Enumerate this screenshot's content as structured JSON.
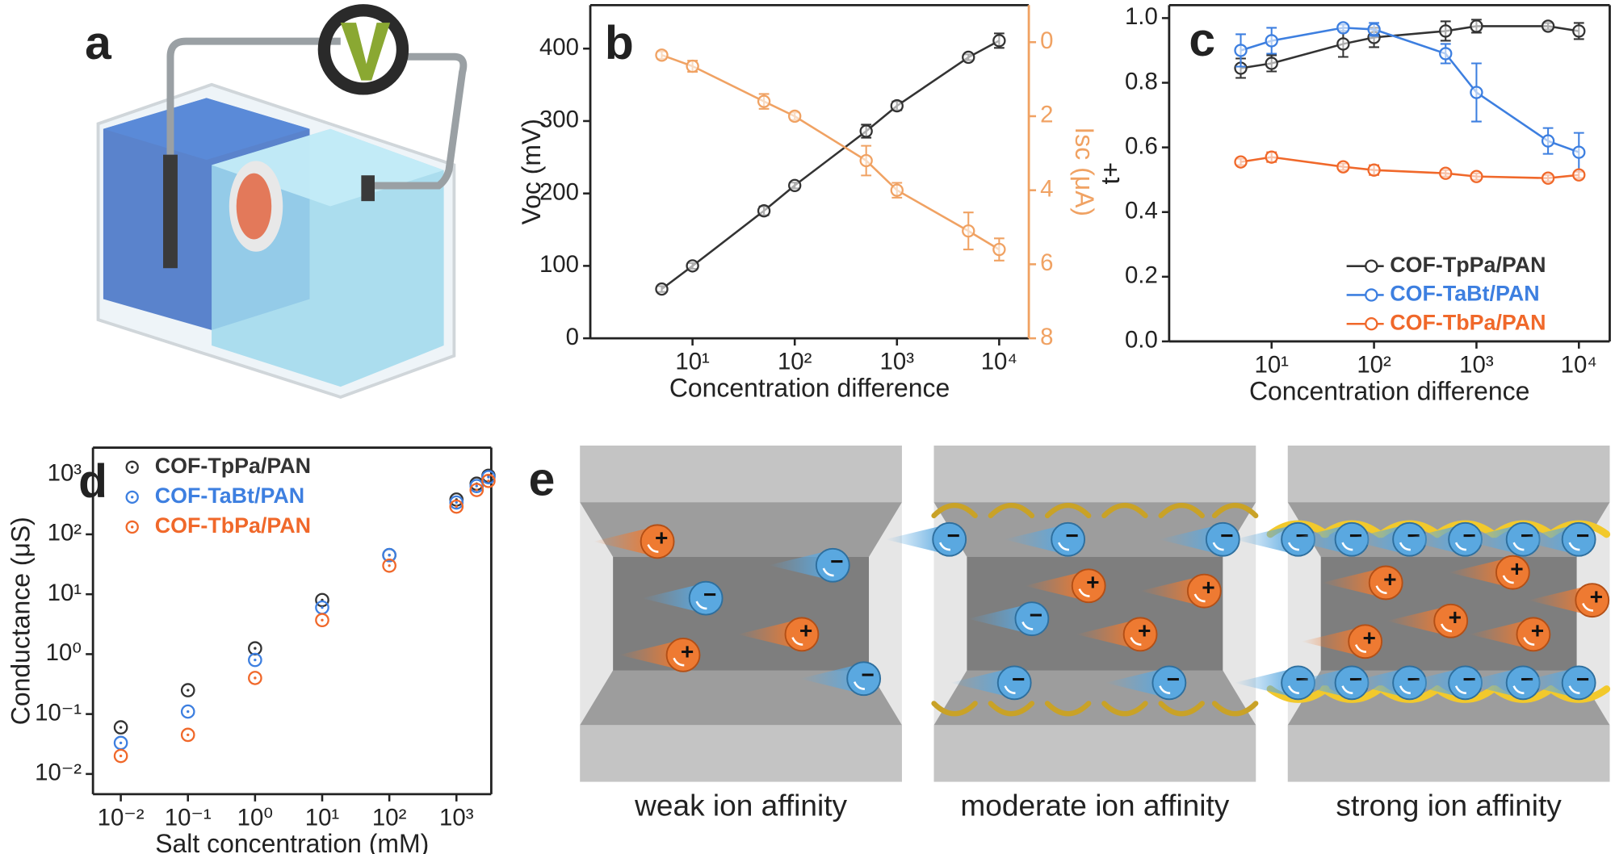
{
  "panel_labels": [
    "a",
    "b",
    "c",
    "d",
    "e"
  ],
  "diagram": {
    "captions": [
      "weak ion affinity",
      "moderate ion affinity",
      "strong ion affinity"
    ],
    "signs": {
      "cation": "+",
      "anion": "−"
    }
  },
  "chart_data": [
    {
      "type": "line",
      "xlabel": "Concentration difference",
      "ylabel": "Voc (mV)",
      "y2label": "Isc (μA)",
      "xscale": "log",
      "xlim": [
        1,
        19500
      ],
      "xticks": [
        {
          "value": 10,
          "label": "10¹"
        },
        {
          "value": 100,
          "label": "10²"
        },
        {
          "value": 1000,
          "label": "10³"
        },
        {
          "value": 10000,
          "label": "10⁴"
        }
      ],
      "ylim": [
        0,
        460
      ],
      "yticks": [
        0,
        100,
        200,
        300,
        400
      ],
      "y2lim": [
        8,
        -1
      ],
      "y2ticks": [
        0,
        2,
        4,
        6,
        8
      ],
      "y2color": "#f0a263",
      "x": [
        5,
        10,
        50,
        100,
        500,
        1000,
        5000,
        10000
      ],
      "series": [
        {
          "name": "Voc",
          "color": "#333333",
          "values": [
            68,
            100,
            176,
            211,
            286,
            321,
            388,
            411
          ],
          "errors": [
            4,
            4,
            6,
            4,
            9,
            6,
            4,
            10
          ]
        },
        {
          "name": "Isc",
          "color": "#f0a263",
          "axis": "y2",
          "values": [
            0.35,
            0.65,
            1.6,
            2.0,
            3.2,
            4.0,
            5.1,
            5.6
          ],
          "errors": [
            0.1,
            0.15,
            0.2,
            0.1,
            0.4,
            0.2,
            0.5,
            0.3
          ]
        }
      ]
    },
    {
      "type": "line",
      "xlabel": "Concentration difference",
      "ylabel": "t+",
      "xscale": "log",
      "xlim": [
        1,
        20000
      ],
      "xticks": [
        {
          "value": 10,
          "label": "10¹"
        },
        {
          "value": 100,
          "label": "10²"
        },
        {
          "value": 1000,
          "label": "10³"
        },
        {
          "value": 10000,
          "label": "10⁴"
        }
      ],
      "ylim": [
        0,
        1.04
      ],
      "yticks": [
        {
          "value": 0,
          "label": "0.0"
        },
        0.2,
        0.4,
        0.6,
        0.8,
        {
          "value": 1,
          "label": "1.0"
        }
      ],
      "legend": "lower right",
      "x": [
        5,
        10,
        50,
        100,
        500,
        1000,
        5000,
        10000
      ],
      "series": [
        {
          "name": "COF-TpPa/PAN",
          "color": "#333333",
          "values": [
            0.845,
            0.86,
            0.92,
            0.94,
            0.96,
            0.975,
            0.975,
            0.96
          ],
          "errors": [
            0.03,
            0.025,
            0.04,
            0.03,
            0.03,
            0.02,
            0.01,
            0.025
          ]
        },
        {
          "name": "COF-TaBt/PAN",
          "color": "#3d7fe0",
          "values": [
            0.9,
            0.93,
            0.97,
            0.965,
            0.89,
            0.77,
            0.62,
            0.585
          ],
          "errors": [
            0.05,
            0.04,
            0.01,
            0.02,
            0.03,
            0.09,
            0.04,
            0.06
          ]
        },
        {
          "name": "COF-TbPa/PAN",
          "color": "#f0682a",
          "values": [
            0.555,
            0.57,
            0.54,
            0.53,
            0.52,
            0.51,
            0.505,
            0.515
          ],
          "errors": [
            0.01,
            0.015,
            0.01,
            0.015,
            0.01,
            0.01,
            0.01,
            0.01
          ]
        }
      ]
    },
    {
      "type": "scatter",
      "xlabel": "Salt concentration (mM)",
      "ylabel": "Conductance (μS)",
      "xscale": "log",
      "yscale": "log",
      "xlim": [
        0.00385,
        3300
      ],
      "ylim": [
        0.0046,
        2800
      ],
      "xticks": [
        {
          "value": 0.01,
          "label": "10⁻²"
        },
        {
          "value": 0.1,
          "label": "10⁻¹"
        },
        {
          "value": 1,
          "label": "10⁰"
        },
        {
          "value": 10,
          "label": "10¹"
        },
        {
          "value": 100,
          "label": "10²"
        },
        {
          "value": 1000,
          "label": "10³"
        }
      ],
      "yticks": [
        {
          "value": 0.01,
          "label": "10⁻²"
        },
        {
          "value": 0.1,
          "label": "10⁻¹"
        },
        {
          "value": 1,
          "label": "10⁰"
        },
        {
          "value": 10,
          "label": "10¹"
        },
        {
          "value": 100,
          "label": "10²"
        },
        {
          "value": 1000,
          "label": "10³"
        }
      ],
      "legend": "upper left",
      "x": [
        0.01,
        0.1,
        1,
        10,
        100,
        1000,
        2000,
        3000
      ],
      "series": [
        {
          "name": "COF-TpPa/PAN",
          "color": "#333333",
          "values": [
            0.06,
            0.25,
            1.25,
            8,
            45,
            380,
            700,
            950
          ]
        },
        {
          "name": "COF-TaBt/PAN",
          "color": "#3d7fe0",
          "values": [
            0.033,
            0.11,
            0.8,
            6,
            45,
            340,
            640,
            900
          ]
        },
        {
          "name": "COF-TbPa/PAN",
          "color": "#f0682a",
          "values": [
            0.02,
            0.045,
            0.4,
            3.7,
            30,
            290,
            550,
            780
          ]
        }
      ]
    }
  ]
}
